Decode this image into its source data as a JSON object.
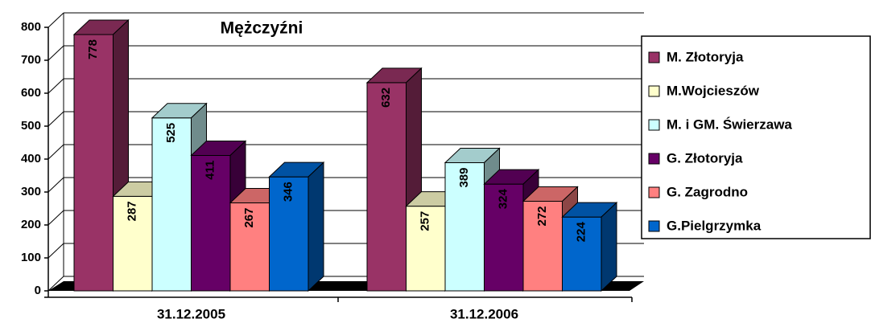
{
  "chart_data": {
    "type": "bar3d",
    "title": "Mężczyźni",
    "categories": [
      "31.12.2005",
      "31.12.2006"
    ],
    "series": [
      {
        "name": "M. Złotoryja",
        "color": "#993366",
        "values": [
          778,
          632
        ]
      },
      {
        "name": "M.Wojcieszów",
        "color": "#FFFFCC",
        "values": [
          287,
          257
        ]
      },
      {
        "name": "M. i GM. Świerzawa",
        "color": "#CCFFFF",
        "values": [
          525,
          389
        ]
      },
      {
        "name": "G. Złotoryja",
        "color": "#660066",
        "values": [
          411,
          324
        ]
      },
      {
        "name": "G. Zagrodno",
        "color": "#FF8080",
        "values": [
          267,
          272
        ]
      },
      {
        "name": "G.Pielgrzymka",
        "color": "#0066CC",
        "values": [
          346,
          224
        ]
      }
    ],
    "ylim": [
      0,
      800
    ],
    "yticks": [
      0,
      100,
      200,
      300,
      400,
      500,
      600,
      700,
      800
    ],
    "grid": true
  }
}
